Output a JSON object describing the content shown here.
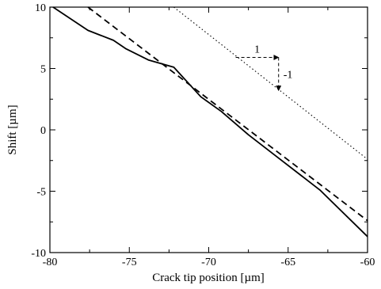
{
  "chart_data": {
    "type": "line",
    "title": "",
    "xlabel": "Crack tip position [µm]",
    "ylabel": "Shift [µm]",
    "xlim": [
      -80,
      -60
    ],
    "ylim": [
      -10,
      10
    ],
    "xticks": [
      -80,
      -75,
      -70,
      -65,
      -60
    ],
    "yticks": [
      -10,
      -5,
      0,
      5,
      10
    ],
    "xtick_labels": [
      "-80",
      "-75",
      "-70",
      "-65",
      "-60"
    ],
    "ytick_labels": [
      "-10",
      "-5",
      "0",
      "5",
      "10"
    ],
    "grid": false,
    "legend": "none",
    "series": [
      {
        "style": "solid",
        "color": "#000000",
        "x": [
          -79.8,
          -77.6,
          -76.0,
          -75.2,
          -73.8,
          -72.2,
          -70.5,
          -69.2,
          -67.5,
          -65.5,
          -63.0,
          -60.0
        ],
        "y": [
          10.0,
          8.1,
          7.3,
          6.6,
          5.7,
          5.1,
          2.7,
          1.5,
          -0.4,
          -2.4,
          -4.9,
          -8.7
        ]
      },
      {
        "style": "dashed",
        "color": "#000000",
        "x": [
          -77.6,
          -60.0
        ],
        "y": [
          10.0,
          -7.4
        ]
      },
      {
        "style": "dotted",
        "color": "#000000",
        "x": [
          -72.2,
          -60.0
        ],
        "y": [
          10.0,
          -2.4
        ]
      }
    ],
    "annotations": {
      "slope_triangle": {
        "x_start": -68.3,
        "x_end": -65.6,
        "y_top": 5.9,
        "y_bottom": 3.2,
        "horizontal_label": "1",
        "vertical_label": "-1"
      }
    }
  }
}
